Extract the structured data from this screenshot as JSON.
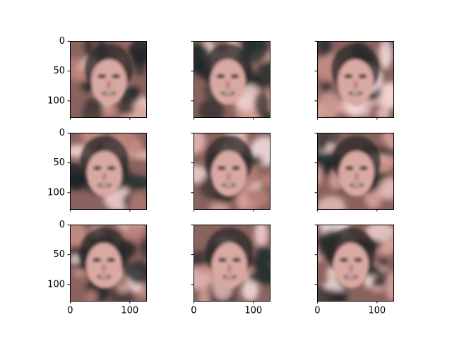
{
  "chart_data": {
    "type": "image",
    "xlim": [
      -0.5,
      127.5
    ],
    "ylim": [
      127.5,
      -0.5
    ],
    "xticks": [
      0,
      100
    ],
    "yticks": [
      0,
      50,
      100
    ]
  }
}
